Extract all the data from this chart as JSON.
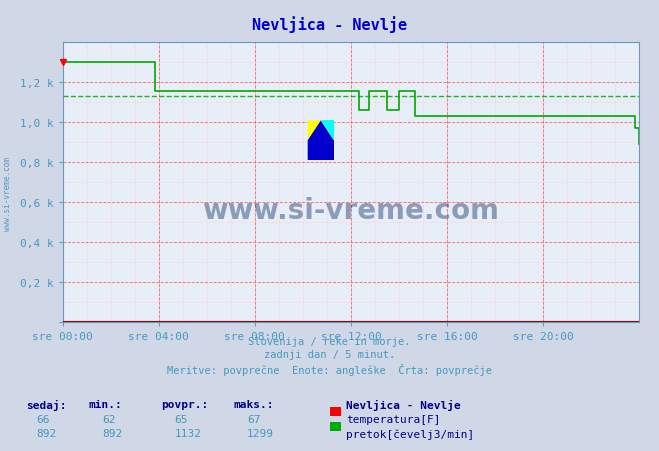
{
  "title": "Nevljica - Nevlje",
  "title_color": "#0000cc",
  "bg_color": "#d0d8e8",
  "plot_bg_color": "#e8eef8",
  "grid_color_major": "#ff6666",
  "grid_color_minor": "#ffcccc",
  "xlabel_times": [
    "sre 00:00",
    "sre 04:00",
    "sre 08:00",
    "sre 12:00",
    "sre 16:00",
    "sre 20:00"
  ],
  "ylabel_labels": [
    "",
    "0,2 k",
    "0,4 k",
    "0,6 k",
    "0,8 k",
    "1,0 k",
    "1,2 k"
  ],
  "ylim": [
    0,
    1400
  ],
  "xlim": [
    0,
    288
  ],
  "pretok_color": "#00aa00",
  "temp_color": "#aa0000",
  "avg_color": "#00aa00",
  "avg_value": 1132,
  "footer_lines": [
    "Slovenija / reke in morje.",
    "zadnji dan / 5 minut.",
    "Meritve: povprečne  Enote: angleške  Črta: povprečje"
  ],
  "footer_color": "#4499bb",
  "table_headers": [
    "sedaj:",
    "min.:",
    "povpr.:",
    "maks.:"
  ],
  "table_header_color": "#000088",
  "table_values_temp": [
    "66",
    "62",
    "65",
    "67"
  ],
  "table_values_pretok": [
    "892",
    "892",
    "1132",
    "1299"
  ],
  "legend_title": "Nevljica - Nevlje",
  "legend_temp_label": "temperatura[F]",
  "legend_pretok_label": "pretok[čevelj3/min]",
  "watermark_text": "www.si-vreme.com",
  "watermark_color": "#1a3a6a",
  "side_watermark": "www.si-vreme.com",
  "pretok_data_x": [
    0,
    1,
    45,
    46,
    80,
    81,
    144,
    145,
    148,
    150,
    153,
    155,
    162,
    163,
    166,
    168,
    175,
    176,
    204,
    205,
    285,
    286,
    288
  ],
  "pretok_data_y": [
    1299,
    1299,
    1299,
    1155,
    1155,
    1155,
    1155,
    1155,
    1060,
    1060,
    1155,
    1155,
    1060,
    1060,
    1060,
    1155,
    1155,
    1030,
    1030,
    1030,
    1030,
    970,
    892
  ]
}
